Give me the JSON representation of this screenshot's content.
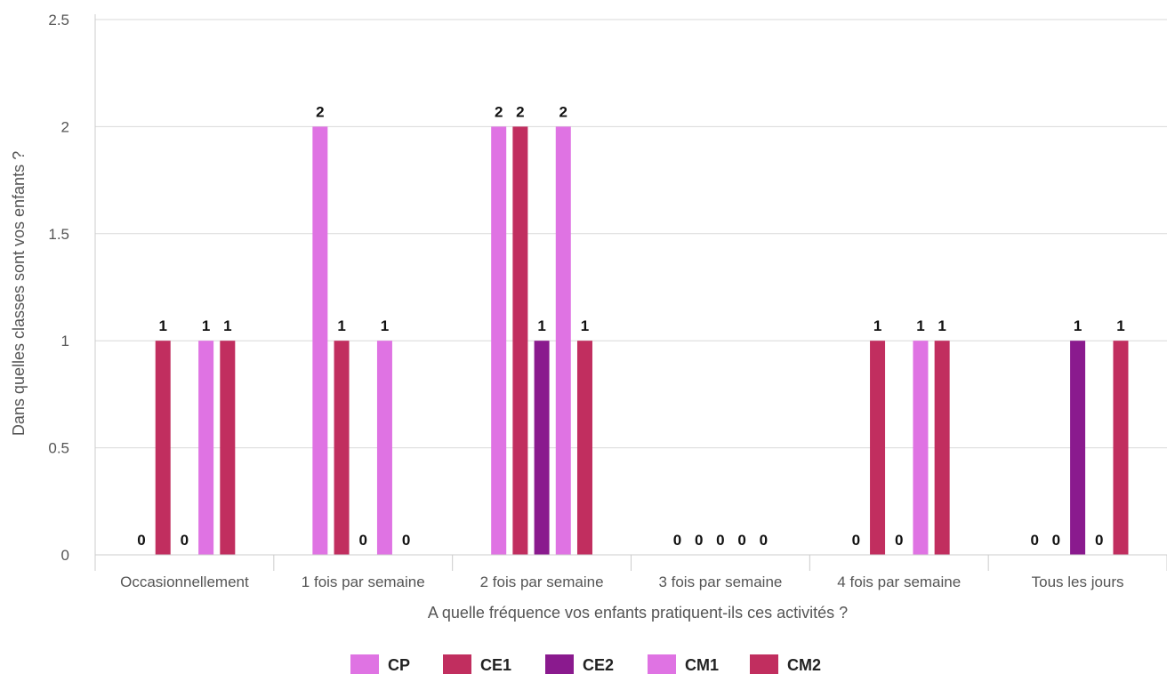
{
  "chart_data": {
    "type": "bar",
    "xlabel": "A quelle fréquence vos enfants pratiquent-ils ces activités ?",
    "ylabel": "Dans quelles classes sont vos enfants ?",
    "ylim": [
      0,
      2.5
    ],
    "yticks": [
      "0",
      "0.5",
      "1",
      "1.5",
      "2",
      "2.5"
    ],
    "grid": true,
    "legend_position": "bottom",
    "categories": [
      "Occasionnellement",
      "1 fois par semaine",
      "2 fois par semaine",
      "3 fois par semaine",
      "4 fois par semaine",
      "Tous les jours"
    ],
    "series": [
      {
        "name": "CP",
        "color": "#df73e3",
        "values": [
          0,
          2,
          2,
          0,
          0,
          0
        ]
      },
      {
        "name": "CE1",
        "color": "#c12e5f",
        "values": [
          1,
          1,
          2,
          0,
          1,
          0
        ]
      },
      {
        "name": "CE2",
        "color": "#8a1a8e",
        "values": [
          0,
          0,
          1,
          0,
          0,
          1
        ]
      },
      {
        "name": "CM1",
        "color": "#df73e3",
        "values": [
          1,
          1,
          2,
          0,
          1,
          0
        ]
      },
      {
        "name": "CM2",
        "color": "#c12e5f",
        "values": [
          1,
          0,
          1,
          0,
          1,
          1
        ]
      }
    ]
  }
}
